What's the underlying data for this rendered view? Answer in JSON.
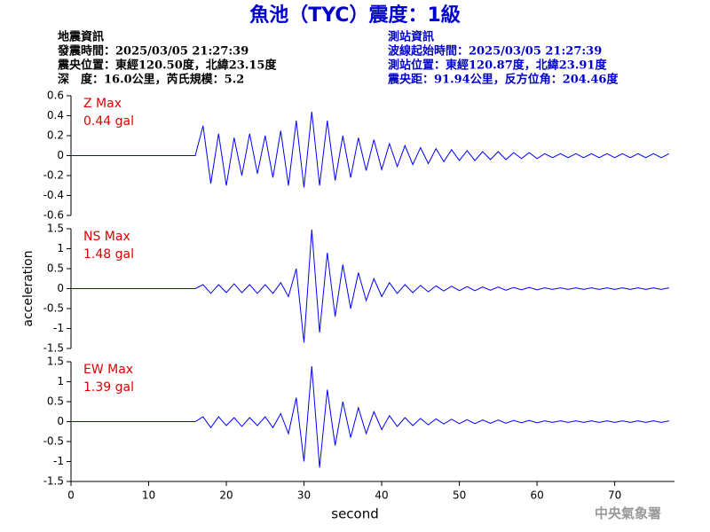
{
  "title": "魚池（TYC）震度：1級",
  "earthquake_info": [
    "地震資訊",
    "發震時間：2025/03/05 21:27:39",
    "震央位置：東經120.50度，北緯23.15度",
    "深　度：16.0公里，芮氏規模：5.2"
  ],
  "station_info": [
    "測站資訊",
    "波線起始時間：2025/03/05 21:27:39",
    "測站位置：東經120.87度，北緯23.91度",
    "震央距：91.94公里，反方位角：204.46度"
  ],
  "credit": "中央氣象署",
  "chart_data": [
    {
      "type": "line",
      "annotation": [
        "Z Max",
        "0.44 gal"
      ],
      "x": [
        0,
        16,
        17,
        18,
        19,
        20,
        21,
        22,
        23,
        24,
        25,
        26,
        27,
        28,
        29,
        30,
        31,
        32,
        33,
        34,
        35,
        36,
        37,
        38,
        39,
        40,
        41,
        42,
        43,
        44,
        45,
        46,
        47,
        48,
        49,
        50,
        51,
        52,
        53,
        54,
        55,
        56,
        57,
        58,
        59,
        60,
        61,
        62,
        63,
        64,
        65,
        66,
        67,
        68,
        69,
        70,
        71,
        72,
        73,
        74,
        75,
        76,
        77
      ],
      "series": [
        {
          "color": "#0000ff",
          "values": [
            0,
            0,
            0.3,
            -0.28,
            0.22,
            -0.3,
            0.18,
            -0.2,
            0.22,
            -0.18,
            0.2,
            -0.22,
            0.25,
            -0.3,
            0.35,
            -0.32,
            0.44,
            -0.3,
            0.35,
            -0.25,
            0.2,
            -0.22,
            0.18,
            -0.15,
            0.16,
            -0.14,
            0.12,
            -0.11,
            0.1,
            -0.09,
            0.08,
            -0.08,
            0.07,
            -0.06,
            0.06,
            -0.05,
            0.05,
            -0.05,
            0.04,
            -0.04,
            0.04,
            -0.04,
            0.03,
            -0.03,
            0.03,
            -0.03,
            0.02,
            -0.02,
            0.02,
            -0.02,
            0.02,
            -0.02,
            0.02,
            -0.02,
            0.02,
            -0.02,
            0.02,
            -0.02,
            0.02,
            -0.02,
            0.02,
            -0.02,
            0.02
          ]
        }
      ],
      "xlim": [
        0,
        77.7
      ],
      "ylim": [
        -0.6,
        0.6
      ],
      "yticks": [
        -0.6,
        -0.4,
        -0.2,
        0,
        0.2,
        0.4,
        0.6
      ]
    },
    {
      "type": "line",
      "annotation": [
        "NS Max",
        "1.48 gal"
      ],
      "ylabel": "acceleration",
      "x": [
        0,
        16,
        17,
        18,
        19,
        20,
        21,
        22,
        23,
        24,
        25,
        26,
        27,
        28,
        29,
        30,
        31,
        32,
        33,
        34,
        35,
        36,
        37,
        38,
        39,
        40,
        41,
        42,
        43,
        44,
        45,
        46,
        47,
        48,
        49,
        50,
        51,
        52,
        53,
        54,
        55,
        56,
        57,
        58,
        59,
        60,
        61,
        62,
        63,
        64,
        65,
        66,
        67,
        68,
        69,
        70,
        71,
        72,
        73,
        74,
        75,
        76,
        77
      ],
      "series": [
        {
          "color": "#0000ff",
          "values": [
            0,
            0,
            0.1,
            -0.12,
            0.1,
            -0.1,
            0.12,
            -0.1,
            0.1,
            -0.12,
            0.1,
            -0.12,
            0.15,
            -0.2,
            0.5,
            -1.35,
            1.48,
            -1.1,
            0.9,
            -0.7,
            0.6,
            -0.5,
            0.4,
            -0.3,
            0.25,
            -0.2,
            0.15,
            -0.12,
            0.1,
            -0.1,
            0.08,
            -0.08,
            0.07,
            -0.06,
            0.06,
            -0.05,
            0.05,
            -0.05,
            0.04,
            -0.04,
            0.04,
            -0.04,
            0.03,
            -0.03,
            0.03,
            -0.03,
            0.02,
            -0.02,
            0.02,
            -0.02,
            0.02,
            -0.02,
            0.02,
            -0.02,
            0.02,
            -0.02,
            0.02,
            -0.02,
            0.02,
            -0.02,
            0.02,
            -0.02,
            0.02
          ]
        }
      ],
      "xlim": [
        0,
        77.7
      ],
      "ylim": [
        -1.5,
        1.5
      ],
      "yticks": [
        -1.5,
        -1,
        -0.5,
        0,
        0.5,
        1,
        1.5
      ]
    },
    {
      "type": "line",
      "annotation": [
        "EW Max",
        "1.39 gal"
      ],
      "xlabel": "second",
      "x": [
        0,
        16,
        17,
        18,
        19,
        20,
        21,
        22,
        23,
        24,
        25,
        26,
        27,
        28,
        29,
        30,
        31,
        32,
        33,
        34,
        35,
        36,
        37,
        38,
        39,
        40,
        41,
        42,
        43,
        44,
        45,
        46,
        47,
        48,
        49,
        50,
        51,
        52,
        53,
        54,
        55,
        56,
        57,
        58,
        59,
        60,
        61,
        62,
        63,
        64,
        65,
        66,
        67,
        68,
        69,
        70,
        71,
        72,
        73,
        74,
        75,
        76,
        77
      ],
      "series": [
        {
          "color": "#0000ff",
          "values": [
            0,
            0,
            0.12,
            -0.15,
            0.12,
            -0.1,
            0.1,
            -0.12,
            0.1,
            -0.1,
            0.12,
            -0.15,
            0.2,
            -0.3,
            0.6,
            -1.0,
            1.39,
            -1.15,
            0.8,
            -0.6,
            0.5,
            -0.4,
            0.35,
            -0.3,
            0.25,
            -0.2,
            0.15,
            -0.12,
            0.1,
            -0.1,
            0.08,
            -0.08,
            0.07,
            -0.06,
            0.06,
            -0.05,
            0.05,
            -0.05,
            0.04,
            -0.04,
            0.04,
            -0.04,
            0.03,
            -0.03,
            0.03,
            -0.03,
            0.02,
            -0.02,
            0.02,
            -0.02,
            0.02,
            -0.02,
            0.02,
            -0.02,
            0.02,
            -0.02,
            0.02,
            -0.02,
            0.02,
            -0.02,
            0.02,
            -0.02,
            0.02
          ]
        }
      ],
      "xlim": [
        0,
        77.7
      ],
      "ylim": [
        -1.5,
        1.5
      ],
      "yticks": [
        -1.5,
        -1,
        -0.5,
        0,
        0.5,
        1,
        1.5
      ],
      "xticks": [
        0,
        10,
        20,
        30,
        40,
        50,
        60,
        70
      ]
    }
  ]
}
